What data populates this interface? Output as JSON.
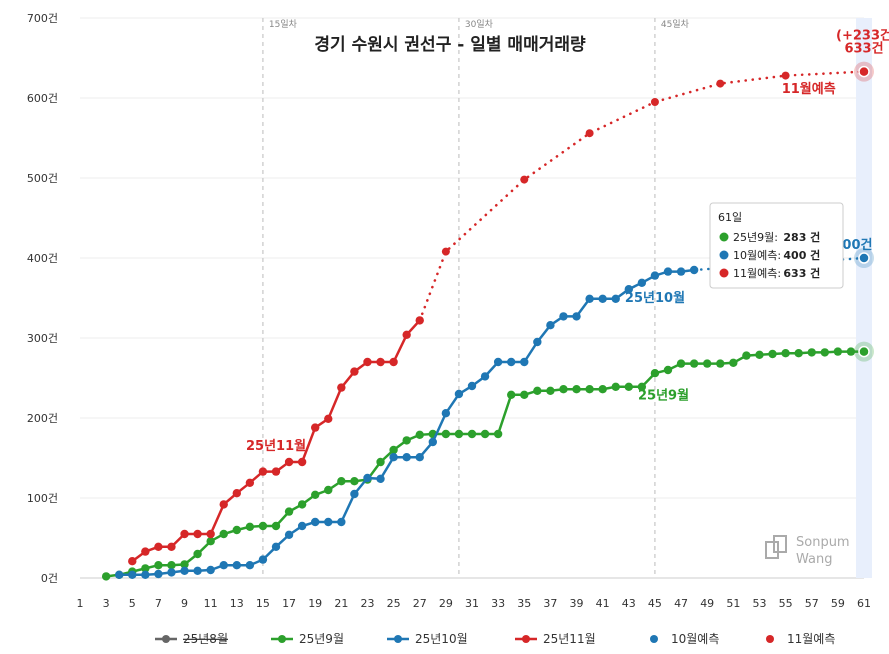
{
  "chart_data": {
    "type": "line",
    "title": "경기 수원시 권선구 - 일별 매매거래량",
    "x_ticks": [
      1,
      3,
      5,
      7,
      9,
      11,
      13,
      15,
      17,
      19,
      21,
      23,
      25,
      27,
      29,
      31,
      33,
      35,
      37,
      39,
      41,
      43,
      45,
      47,
      49,
      51,
      53,
      55,
      57,
      59,
      61
    ],
    "xlim": [
      1,
      61
    ],
    "y_ticks": [
      "0건",
      "100건",
      "200건",
      "300건",
      "400건",
      "500건",
      "600건",
      "700건"
    ],
    "ylim": [
      0,
      700
    ],
    "grid": true,
    "vertical_markers": [
      {
        "x": 15,
        "label": "15일차"
      },
      {
        "x": 30,
        "label": "30일차"
      },
      {
        "x": 45,
        "label": "45일차"
      }
    ],
    "series": [
      {
        "name": "25년9월",
        "color": "#2ca02c",
        "style": "solid",
        "x": [
          3,
          4,
          5,
          6,
          7,
          8,
          9,
          10,
          11,
          12,
          13,
          14,
          15,
          16,
          17,
          18,
          19,
          20,
          21,
          22,
          23,
          24,
          25,
          26,
          27,
          28,
          29,
          30,
          31,
          32,
          33,
          34,
          35,
          36,
          37,
          38,
          39,
          40,
          41,
          42,
          43,
          44,
          45,
          46,
          47,
          48,
          49,
          50,
          51,
          52,
          53,
          54,
          55,
          56,
          57,
          58,
          59,
          60,
          61
        ],
        "y": [
          2,
          4,
          8,
          12,
          16,
          16,
          17,
          30,
          46,
          55,
          60,
          64,
          65,
          65,
          83,
          92,
          104,
          110,
          121,
          121,
          123,
          145,
          160,
          172,
          179,
          180,
          180,
          180,
          180,
          180,
          180,
          229,
          229,
          234,
          234,
          236,
          236,
          236,
          236,
          239,
          239,
          239,
          256,
          260,
          268,
          268,
          268,
          268,
          269,
          278,
          279,
          280,
          281,
          281,
          282,
          282,
          283,
          283,
          283
        ]
      },
      {
        "name": "25년10월",
        "color": "#1f77b4",
        "style": "solid",
        "x": [
          4,
          5,
          6,
          7,
          8,
          9,
          10,
          11,
          12,
          13,
          14,
          15,
          16,
          17,
          18,
          19,
          20,
          21,
          22,
          23,
          24,
          25,
          26,
          27,
          28,
          29,
          30,
          31,
          32,
          33,
          34,
          35,
          36,
          37,
          38,
          39,
          40,
          41,
          42,
          43,
          44,
          45,
          46,
          47,
          48
        ],
        "y": [
          4,
          4,
          4,
          5,
          7,
          9,
          9,
          10,
          16,
          16,
          16,
          23,
          39,
          54,
          65,
          70,
          70,
          70,
          105,
          125,
          124,
          151,
          151,
          151,
          170,
          206,
          230,
          240,
          252,
          270,
          270,
          270,
          295,
          316,
          327,
          327,
          349,
          349,
          349,
          361,
          369,
          378,
          383,
          383,
          385
        ]
      },
      {
        "name": "25년11월",
        "color": "#d62728",
        "style": "solid",
        "x": [
          5,
          6,
          7,
          8,
          9,
          10,
          11,
          12,
          13,
          14,
          15,
          16,
          17,
          18,
          19,
          20,
          21,
          22,
          23,
          24,
          25,
          26,
          27
        ],
        "y": [
          21,
          33,
          39,
          39,
          55,
          55,
          55,
          92,
          106,
          119,
          133,
          133,
          145,
          145,
          188,
          199,
          238,
          258,
          270,
          270,
          270,
          304,
          322
        ]
      },
      {
        "name": "10월예측",
        "color": "#1f77b4",
        "style": "dotted",
        "x": [
          48,
          61
        ],
        "y": [
          385,
          400
        ]
      },
      {
        "name": "11월예측",
        "color": "#d62728",
        "style": "dotted",
        "x": [
          27,
          29,
          35,
          40,
          45,
          50,
          55,
          61
        ],
        "y": [
          322,
          408,
          498,
          556,
          595,
          618,
          628,
          633
        ]
      }
    ],
    "legend": {
      "placement": "bottom",
      "items": [
        {
          "name": "25년8월",
          "color": "#666666",
          "style": "solid",
          "strike": true
        },
        {
          "name": "25년9월",
          "color": "#2ca02c",
          "style": "solid"
        },
        {
          "name": "25년10월",
          "color": "#1f77b4",
          "style": "solid"
        },
        {
          "name": "25년11월",
          "color": "#d62728",
          "style": "solid"
        },
        {
          "name": "10월예측",
          "color": "#1f77b4",
          "style": "dotted"
        },
        {
          "name": "11월예측",
          "color": "#d62728",
          "style": "dotted"
        }
      ]
    },
    "annotations": [
      {
        "text": "25년11월",
        "x": 16,
        "y": 160,
        "color": "#d62728"
      },
      {
        "text": "25년10월",
        "x": 45,
        "y": 345,
        "color": "#1f77b4"
      },
      {
        "text": "25년9월",
        "x": 46,
        "y": 223,
        "color": "#2ca02c"
      },
      {
        "text": "11월예측",
        "x": 57,
        "y": 606,
        "color": "#d62728"
      },
      {
        "text": "633건",
        "x": 61,
        "y": 657,
        "color": "#d62728"
      },
      {
        "text": "(+233건",
        "x": 61,
        "y": 673,
        "color": "#d62728"
      },
      {
        "text": "00건",
        "x": 60.5,
        "y": 411,
        "color": "#1f77b4"
      }
    ],
    "tooltip": {
      "title": "61일",
      "rows": [
        {
          "color": "#2ca02c",
          "label": "25년9월: ",
          "value": "283 건"
        },
        {
          "color": "#1f77b4",
          "label": "10월예측: ",
          "value": "400 건"
        },
        {
          "color": "#d62728",
          "label": "11월예측: ",
          "value": "633 건"
        }
      ]
    },
    "highlight_x": 61
  },
  "logo": {
    "line1": "Sonpum",
    "line2": "Wang"
  }
}
